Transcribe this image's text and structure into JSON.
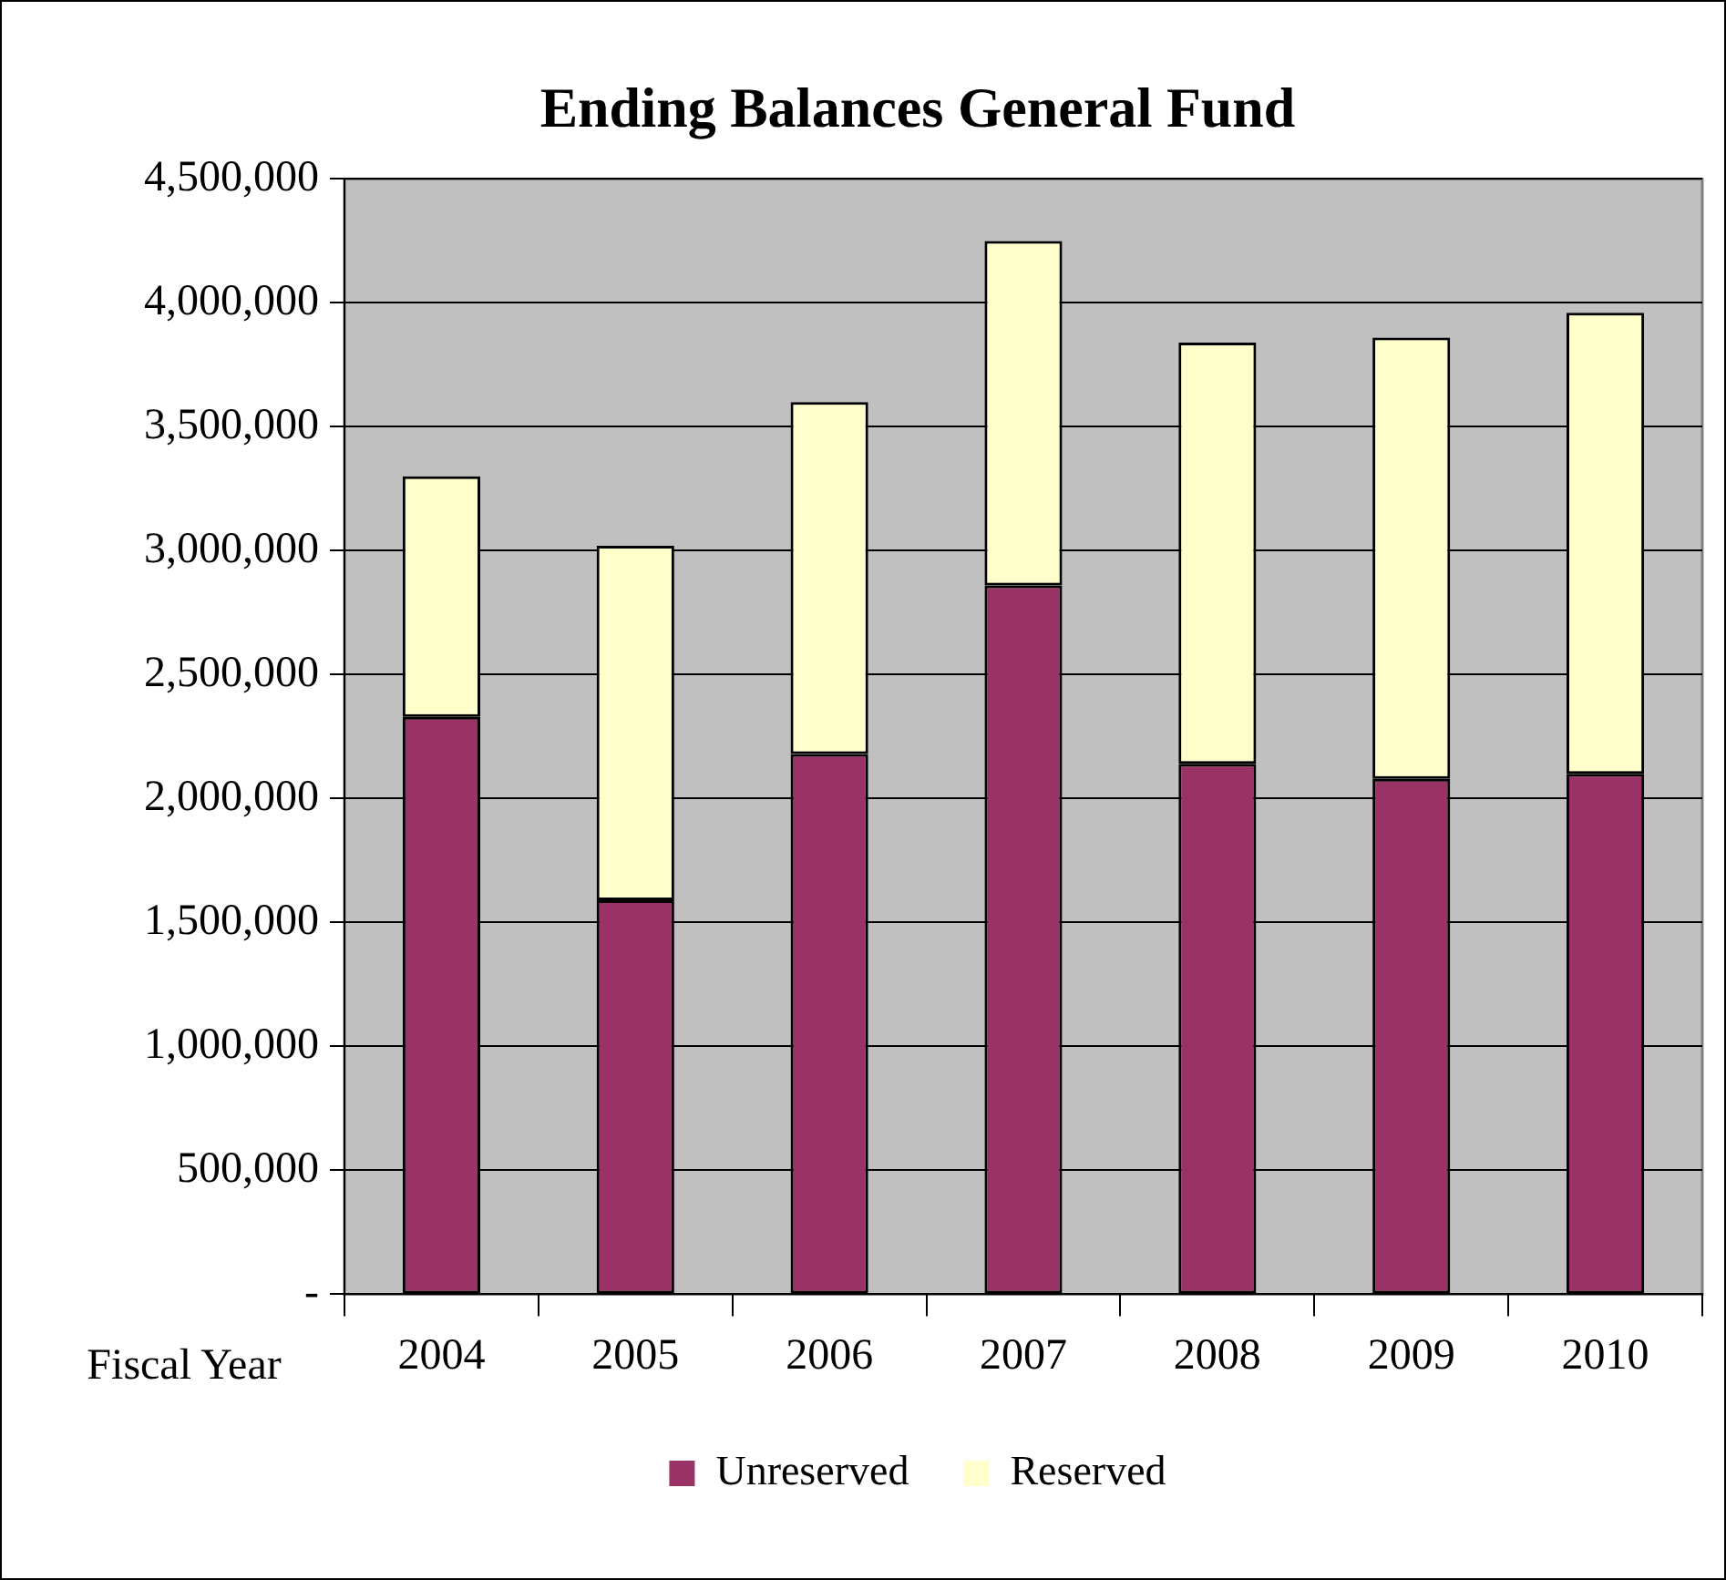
{
  "chart_data": {
    "type": "bar",
    "title": "Ending Balances General Fund",
    "xlabel": "Fiscal Year",
    "categories": [
      "2004",
      "2005",
      "2006",
      "2007",
      "2008",
      "2009",
      "2010"
    ],
    "stacked": true,
    "series": [
      {
        "name": "Unreserved",
        "color": "#993366",
        "values": [
          2330000,
          1590000,
          2180000,
          2860000,
          2140000,
          2080000,
          2100000
        ]
      },
      {
        "name": "Reserved",
        "color": "#ffffcc",
        "values": [
          970000,
          1430000,
          1420000,
          1390000,
          1700000,
          1780000,
          1860000
        ]
      }
    ],
    "ylim": [
      0,
      4500000
    ],
    "yticks": [
      {
        "value": 0,
        "label": "-"
      },
      {
        "value": 500000,
        "label": "500,000"
      },
      {
        "value": 1000000,
        "label": "1,000,000"
      },
      {
        "value": 1500000,
        "label": "1,500,000"
      },
      {
        "value": 2000000,
        "label": "2,000,000"
      },
      {
        "value": 2500000,
        "label": "2,500,000"
      },
      {
        "value": 3000000,
        "label": "3,000,000"
      },
      {
        "value": 3500000,
        "label": "3,500,000"
      },
      {
        "value": 4000000,
        "label": "4,000,000"
      },
      {
        "value": 4500000,
        "label": "4,500,000"
      }
    ],
    "grid": "y",
    "legend": "bottom"
  }
}
